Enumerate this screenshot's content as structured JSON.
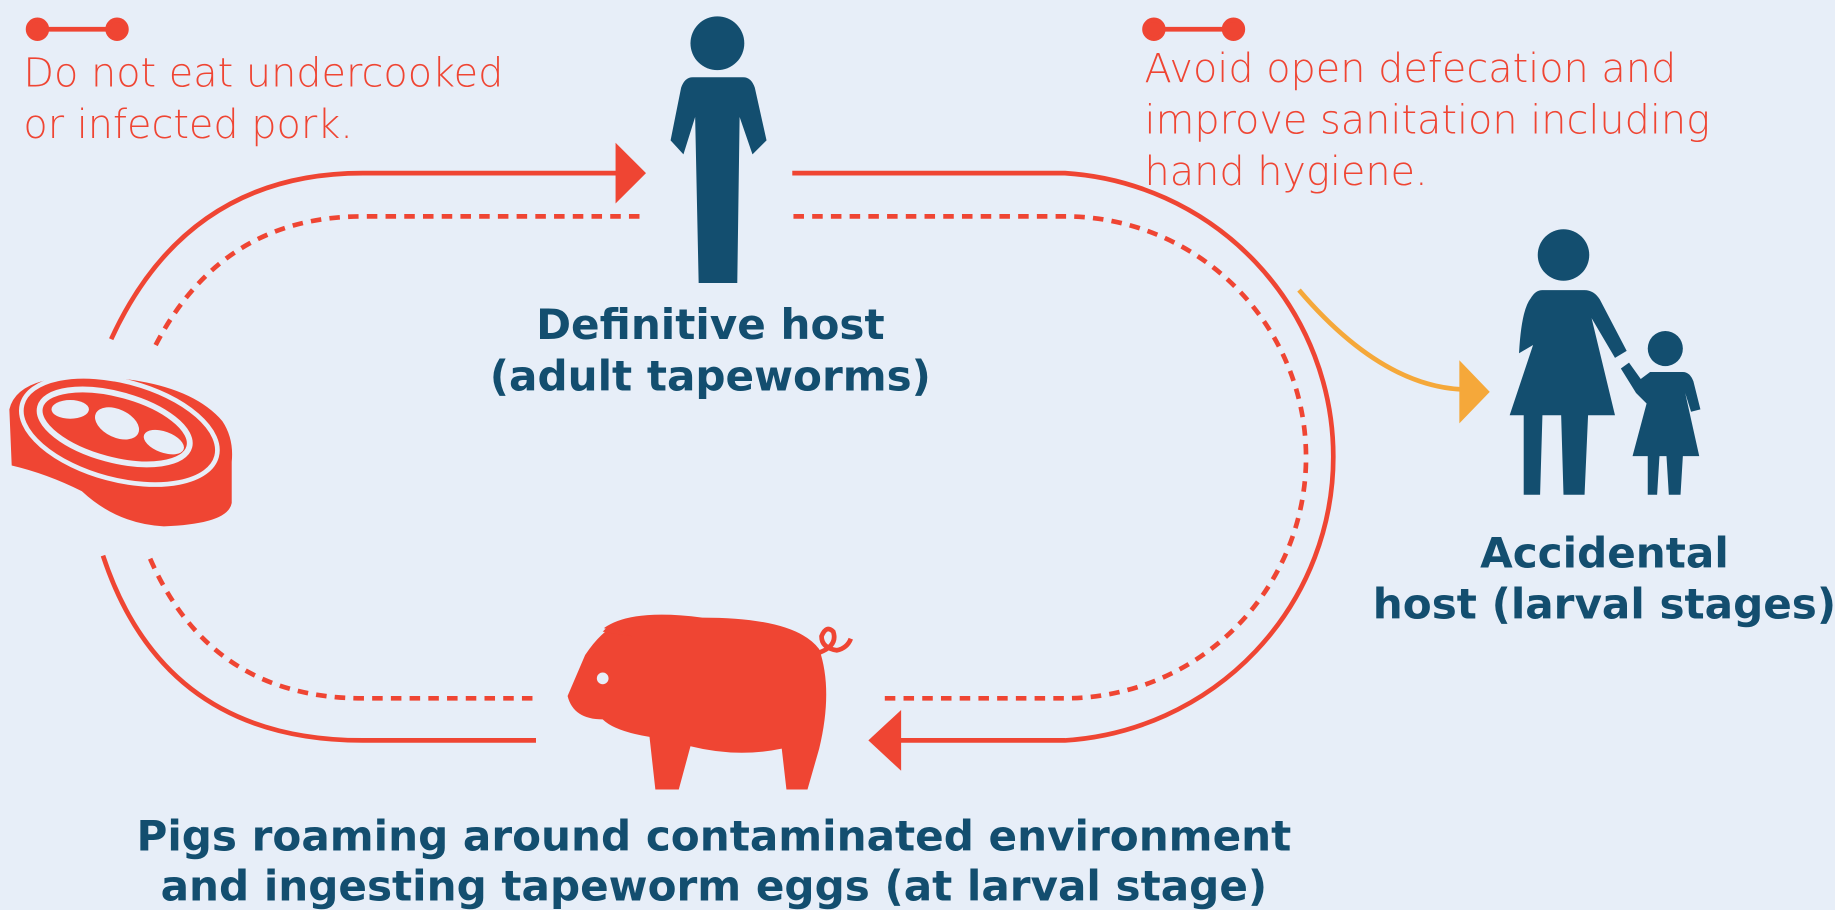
{
  "notes": [
    {
      "lines": [
        "Do not eat undercooked",
        "or infected pork."
      ]
    },
    {
      "lines": [
        "Avoid open defecation and",
        "improve sanitation including",
        "hand hygiene."
      ]
    }
  ],
  "nodes": [
    {
      "lines": [
        "Definitive host",
        "(adult tapeworms)"
      ]
    },
    {
      "lines": [
        "Accidental",
        "host (larval stages)"
      ]
    },
    {
      "lines": [
        "Pigs roaming around contaminated environment",
        "and ingesting tapeworm eggs (at larval stage)"
      ]
    }
  ]
}
